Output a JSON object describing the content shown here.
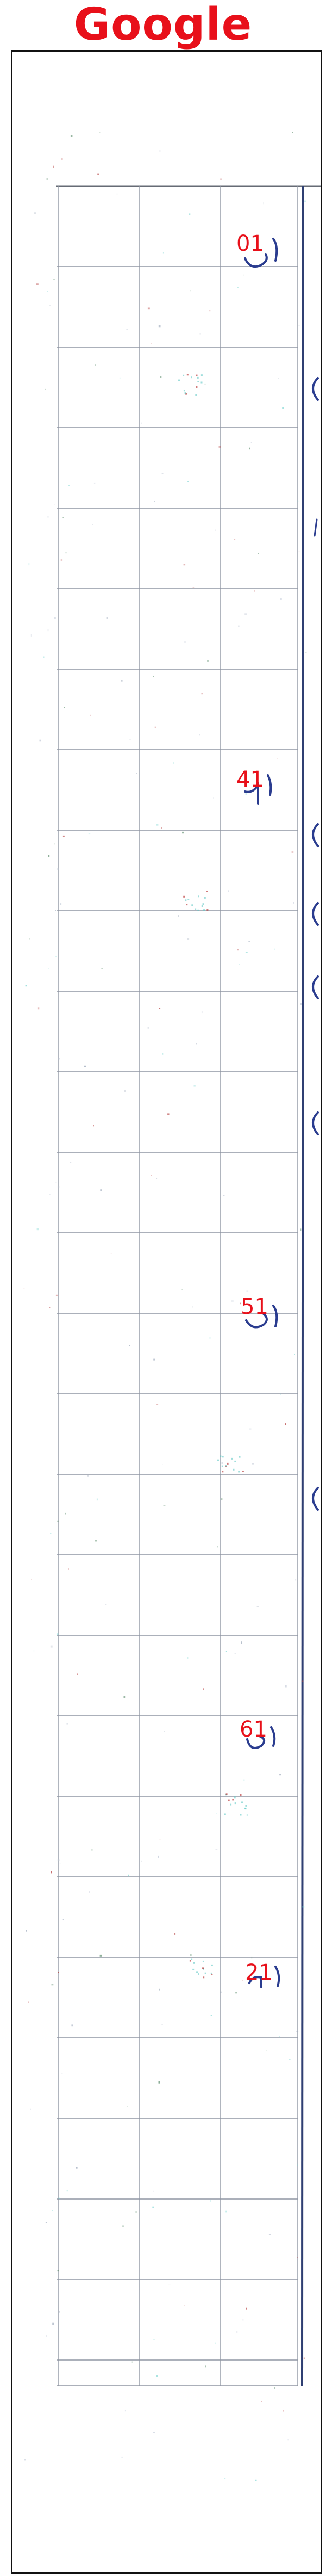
{
  "header": {
    "title": "Google",
    "title_color": "#e8101a"
  },
  "sheet": {
    "grid_color": "#8f95a3",
    "ink_color": "#2a3c8f",
    "label_color": "#e8101a",
    "labels": [
      "01",
      "41",
      "51",
      "61",
      "21"
    ]
  }
}
